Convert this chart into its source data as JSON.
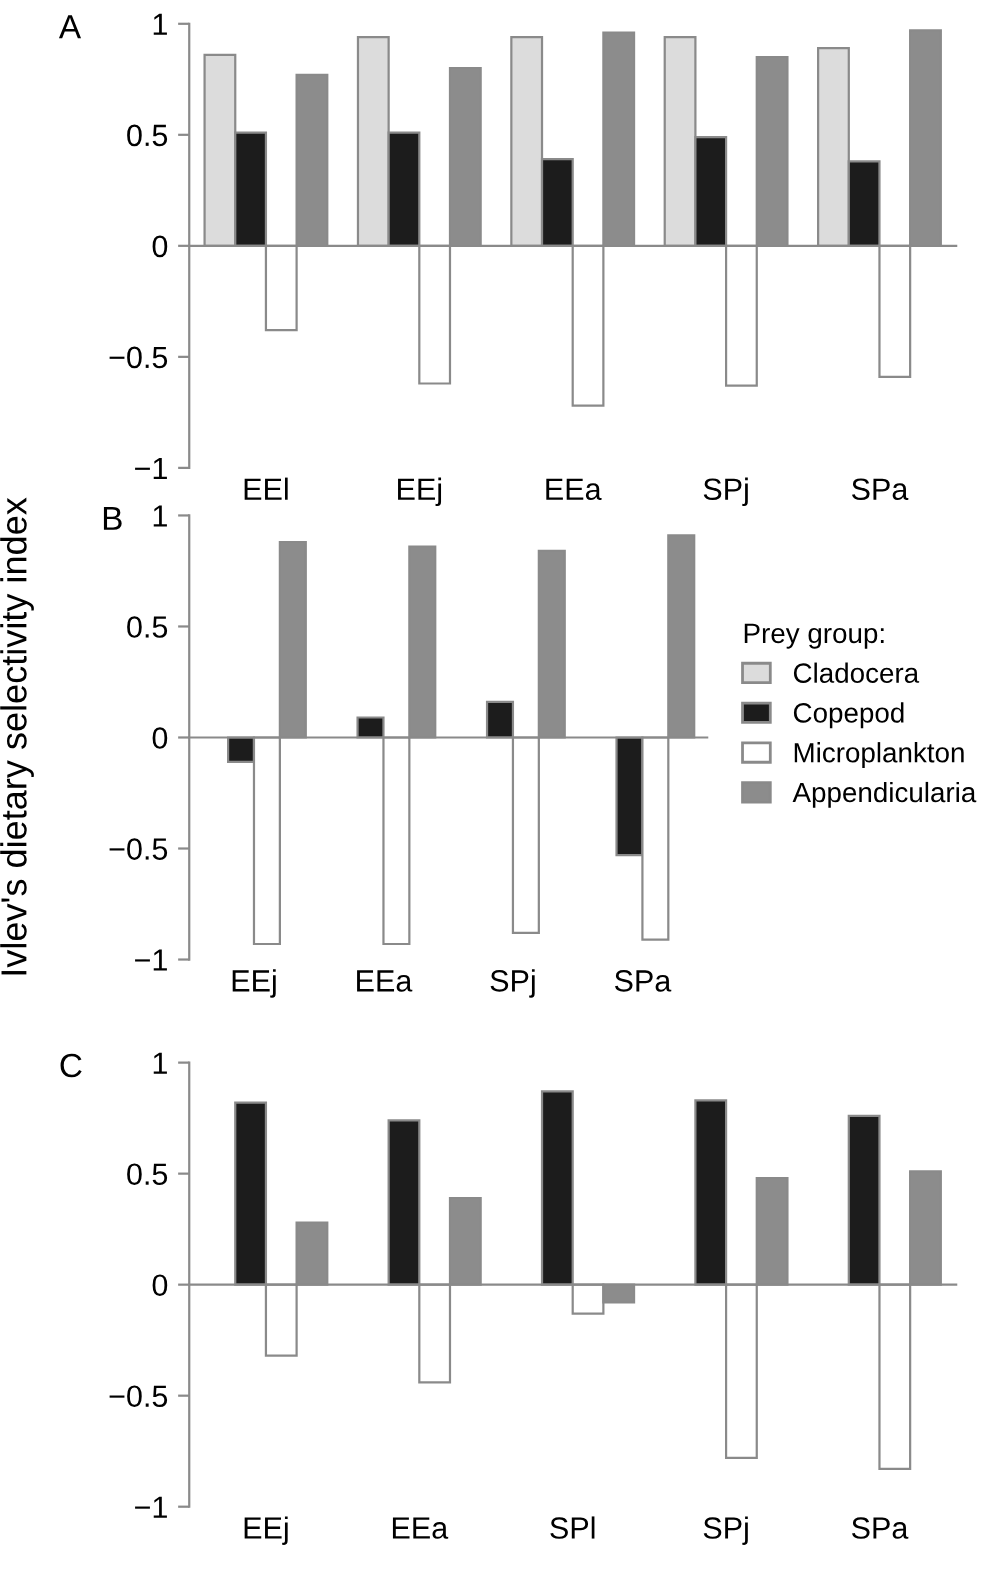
{
  "chart_data": [
    {
      "type": "bar",
      "title": "A",
      "categories": [
        "EEl",
        "EEj",
        "EEa",
        "SPj",
        "SPa"
      ],
      "ylim": [
        -1,
        1
      ],
      "yticks": [
        -1,
        -0.5,
        0,
        0.5,
        1
      ],
      "legend": false,
      "series": [
        {
          "color": "#dcdcdc",
          "values": [
            0.86,
            0.94,
            0.94,
            0.94,
            0.89
          ]
        },
        {
          "color": "#1c1c1c",
          "values": [
            0.51,
            0.51,
            0.39,
            0.49,
            0.38
          ]
        },
        {
          "color": "#ffffff",
          "values": [
            -0.38,
            -0.62,
            -0.72,
            -0.63,
            -0.59
          ]
        },
        {
          "color": "#8c8c8c",
          "values": [
            0.77,
            0.8,
            0.96,
            0.85,
            0.97
          ]
        }
      ]
    },
    {
      "type": "bar",
      "title": "B",
      "ylabel": "Ivlev's dietary selectivity index",
      "legend_title": "Prey group:",
      "legend": "right",
      "categories": [
        "EEj",
        "EEa",
        "SPj",
        "SPa"
      ],
      "ylim": [
        -1,
        1
      ],
      "yticks": [
        -1,
        -0.5,
        0,
        0.5,
        1
      ],
      "series": [
        {
          "name": "Cladocera",
          "color": "#dcdcdc",
          "values": [
            null,
            null,
            null,
            null
          ]
        },
        {
          "name": "Copepod",
          "color": "#1c1c1c",
          "values": [
            -0.11,
            0.09,
            0.16,
            -0.53
          ]
        },
        {
          "name": "Microplankton",
          "color": "#ffffff",
          "values": [
            -0.93,
            -0.93,
            -0.88,
            -0.91
          ]
        },
        {
          "name": "Appendicularia",
          "color": "#8c8c8c",
          "values": [
            0.88,
            0.86,
            0.84,
            0.91
          ]
        }
      ]
    },
    {
      "type": "bar",
      "title": "C",
      "categories": [
        "EEj",
        "EEa",
        "SPl",
        "SPj",
        "SPa"
      ],
      "ylim": [
        -1,
        1
      ],
      "yticks": [
        -1,
        -0.5,
        0,
        0.5,
        1
      ],
      "legend": false,
      "series": [
        {
          "color": "#dcdcdc",
          "values": [
            null,
            null,
            null,
            null,
            null
          ]
        },
        {
          "color": "#1c1c1c",
          "values": [
            0.82,
            0.74,
            0.87,
            0.83,
            0.76
          ]
        },
        {
          "color": "#ffffff",
          "values": [
            -0.32,
            -0.44,
            -0.13,
            -0.78,
            -0.83
          ]
        },
        {
          "color": "#8c8c8c",
          "values": [
            0.28,
            0.39,
            -0.08,
            0.48,
            0.51
          ]
        }
      ]
    }
  ]
}
